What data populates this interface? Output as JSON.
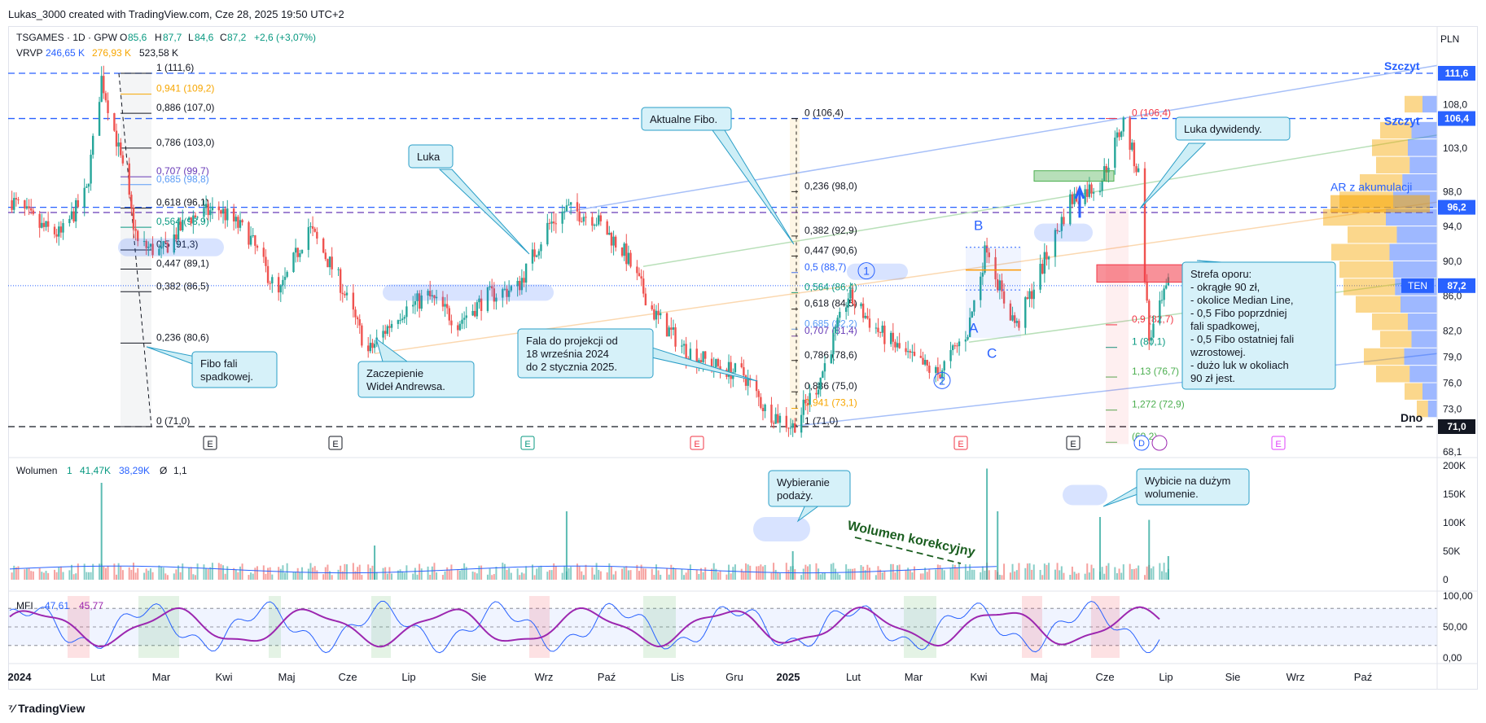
{
  "header": {
    "text": "Lukas_3000 created with TradingView.com, Cze 28, 2025 19:50 UTC+2"
  },
  "legend": {
    "symbol": "TSGAMES · 1D · GPW",
    "o_label": "O",
    "o": "85,6",
    "h_label": "H",
    "h": "87,7",
    "l_label": "L",
    "l": "84,6",
    "c_label": "C",
    "c": "87,2",
    "change": "+2,6 (+3,07%)",
    "vrvp_label": "VRVP",
    "vrvp_1": "246,65 K",
    "vrvp_2": "276,93 K",
    "vrvp_3": "523,58 K"
  },
  "currency": "PLN",
  "price_axis": [
    "108,0",
    "103,0",
    "98,0",
    "94,0",
    "90,0",
    "86,0",
    "82,0",
    "79,0",
    "76,0",
    "73,0",
    "68,1"
  ],
  "price_badges": [
    {
      "label": "111,6",
      "color": "#2962ff",
      "value": 111.6
    },
    {
      "label": "106,4",
      "color": "#2962ff",
      "value": 106.4
    },
    {
      "label": "96,2",
      "color": "#2962ff",
      "value": 96.2
    },
    {
      "label": "87,2",
      "color": "#2962ff",
      "value": 87.2
    },
    {
      "label": "71,0",
      "color": "#131722",
      "value": 71.0
    }
  ],
  "ten_label": "TEN",
  "level_labels": {
    "szczyt1": "Szczyt",
    "szczyt2": "Szczyt",
    "dno": "Dno",
    "ar": "AR z akumulacji"
  },
  "fibo_left": [
    {
      "t": "1 (111,6)",
      "v": 111.6,
      "c": "#131722"
    },
    {
      "t": "0,941 (109,2)",
      "v": 109.2,
      "c": "#f7a600"
    },
    {
      "t": "0,886 (107,0)",
      "v": 107.0,
      "c": "#131722"
    },
    {
      "t": "0,786 (103,0)",
      "v": 103.0,
      "c": "#131722"
    },
    {
      "t": "0,707 (99,7)",
      "v": 99.7,
      "c": "#673ab7"
    },
    {
      "t": "0,685 (98,8)",
      "v": 98.8,
      "c": "#5b9cf6"
    },
    {
      "t": "0,618 (96,1)",
      "v": 96.1,
      "c": "#131722"
    },
    {
      "t": "0,564 (93,9)",
      "v": 93.9,
      "c": "#089981"
    },
    {
      "t": "0,5 (91,3)",
      "v": 91.3,
      "c": "#131722"
    },
    {
      "t": "0,447 (89,1)",
      "v": 89.1,
      "c": "#131722"
    },
    {
      "t": "0,382 (86,5)",
      "v": 86.5,
      "c": "#131722"
    },
    {
      "t": "0,236 (80,6)",
      "v": 80.6,
      "c": "#131722"
    },
    {
      "t": "0 (71,0)",
      "v": 71.0,
      "c": "#131722"
    }
  ],
  "fibo_mid": [
    {
      "t": "0 (106,4)",
      "v": 106.4,
      "c": "#131722"
    },
    {
      "t": "0,236 (98,0)",
      "v": 98.0,
      "c": "#131722"
    },
    {
      "t": "0,382 (92,9)",
      "v": 92.9,
      "c": "#131722"
    },
    {
      "t": "0,447 (90,6)",
      "v": 90.6,
      "c": "#131722"
    },
    {
      "t": "0,5 (88,7)",
      "v": 88.7,
      "c": "#2962ff"
    },
    {
      "t": "0,564 (86,4)",
      "v": 86.4,
      "c": "#089981"
    },
    {
      "t": "0,618 (84,5)",
      "v": 84.5,
      "c": "#131722"
    },
    {
      "t": "0,685 (82,2)",
      "v": 82.2,
      "c": "#5b9cf6"
    },
    {
      "t": "0,707 (81,4)",
      "v": 81.4,
      "c": "#673ab7"
    },
    {
      "t": "0,786 (78,6)",
      "v": 78.6,
      "c": "#131722"
    },
    {
      "t": "0,886 (75,0)",
      "v": 75.0,
      "c": "#131722"
    },
    {
      "t": "0,941 (73,1)",
      "v": 73.1,
      "c": "#f7a600"
    },
    {
      "t": "1 (71,0)",
      "v": 71.0,
      "c": "#131722"
    }
  ],
  "fibo_right": [
    {
      "t": "0 (106,4)",
      "v": 106.4,
      "c": "#f23645"
    },
    {
      "t": "0,9 (82,7)",
      "v": 82.7,
      "c": "#f23645"
    },
    {
      "t": "1 (80,1)",
      "v": 80.1,
      "c": "#089981"
    },
    {
      "t": "1,13 (76,7)",
      "v": 76.7,
      "c": "#4caf50"
    },
    {
      "t": "1,272 (72,9)",
      "v": 72.9,
      "c": "#4caf50"
    },
    {
      "t": "(69,2)",
      "v": 69.2,
      "c": "#4caf50"
    }
  ],
  "annotations": {
    "fibo_fali": [
      "Fibo fali",
      "spadkowej."
    ],
    "luka": [
      "Luka"
    ],
    "zaczepienie": [
      "Zaczepienie",
      "Wideł Andrewsa."
    ],
    "fala": [
      "Fala do projekcji od",
      "18 września 2024",
      "do 2 stycznia 2025."
    ],
    "aktualne": [
      "Aktualne Fibo."
    ],
    "luka_dyw": [
      "Luka dywidendy."
    ],
    "strefa": [
      "Strefa oporu:",
      "- okrągłe 90 zł,",
      "- okolice Median Line,",
      "- 0,5 Fibo poprzdniej",
      "  fali spadkowej,",
      "- 0,5 Fibo ostatniej fali",
      "  wzrostowej.",
      "- dużo luk w okoliach",
      "  90 zł jest."
    ],
    "wybieranie": [
      "Wybieranie",
      "podaży."
    ],
    "wybicie": [
      "Wybicie na dużym",
      "wolumenie."
    ],
    "wolumen_korekcyjny": "Wolumen korekcyjny"
  },
  "wave_labels": {
    "w1": "1",
    "w2": "2",
    "a1": "A",
    "b": "B",
    "c": "C"
  },
  "events": [
    "E",
    "E",
    "E",
    "E",
    "E",
    "E",
    "E",
    "D"
  ],
  "volume": {
    "label": "Wolumen",
    "v1": "1",
    "v2": "41,47K",
    "v3": "38,29K",
    "v4": "Ø",
    "v5": "1,1",
    "axis": [
      "200K",
      "150K",
      "100K",
      "50K",
      "0"
    ]
  },
  "mfi": {
    "label": "MFI",
    "v1": "47,61",
    "v2": "45,77",
    "axis": [
      "100,00",
      "50,00",
      "0,00"
    ]
  },
  "time_axis": [
    "2024",
    "Lut",
    "Mar",
    "Kwi",
    "Maj",
    "Cze",
    "Lip",
    "Sie",
    "Wrz",
    "Paź",
    "Lis",
    "Gru",
    "2025",
    "Lut",
    "Mar",
    "Kwi",
    "Maj",
    "Cze",
    "Lip",
    "Sie",
    "Wrz",
    "Paź"
  ],
  "watermark": "TradingView",
  "chart_data": {
    "type": "candlestick",
    "title": "TSGAMES · 1D · GPW",
    "ylim": [
      68.1,
      113.0
    ],
    "x_start": "2024-01-01",
    "x_end": "2025-10-31",
    "last_bar": "2025-06-27",
    "close_series": [
      {
        "d": "2024-01-02",
        "v": 97.0
      },
      {
        "d": "2024-01-15",
        "v": 94.0
      },
      {
        "d": "2024-01-25",
        "v": 93.0
      },
      {
        "d": "2024-02-06",
        "v": 98.0
      },
      {
        "d": "2024-02-13",
        "v": 111.0
      },
      {
        "d": "2024-02-20",
        "v": 104.0
      },
      {
        "d": "2024-03-01",
        "v": 92.0
      },
      {
        "d": "2024-03-12",
        "v": 91.0
      },
      {
        "d": "2024-03-25",
        "v": 95.0
      },
      {
        "d": "2024-04-08",
        "v": 96.0
      },
      {
        "d": "2024-04-22",
        "v": 93.0
      },
      {
        "d": "2024-05-06",
        "v": 86.0
      },
      {
        "d": "2024-05-20",
        "v": 94.0
      },
      {
        "d": "2024-06-03",
        "v": 88.0
      },
      {
        "d": "2024-06-17",
        "v": 79.5
      },
      {
        "d": "2024-07-01",
        "v": 84.0
      },
      {
        "d": "2024-07-15",
        "v": 86.0
      },
      {
        "d": "2024-07-29",
        "v": 83.0
      },
      {
        "d": "2024-08-12",
        "v": 86.0
      },
      {
        "d": "2024-08-26",
        "v": 87.0
      },
      {
        "d": "2024-09-09",
        "v": 94.0
      },
      {
        "d": "2024-09-18",
        "v": 96.0
      },
      {
        "d": "2024-10-01",
        "v": 95.0
      },
      {
        "d": "2024-10-15",
        "v": 91.0
      },
      {
        "d": "2024-10-29",
        "v": 84.0
      },
      {
        "d": "2024-11-12",
        "v": 80.0
      },
      {
        "d": "2024-11-26",
        "v": 78.0
      },
      {
        "d": "2024-12-10",
        "v": 77.0
      },
      {
        "d": "2024-12-20",
        "v": 73.0
      },
      {
        "d": "2025-01-02",
        "v": 71.0
      },
      {
        "d": "2025-01-14",
        "v": 76.0
      },
      {
        "d": "2025-01-28",
        "v": 86.0
      },
      {
        "d": "2025-02-11",
        "v": 82.0
      },
      {
        "d": "2025-02-25",
        "v": 79.0
      },
      {
        "d": "2025-03-11",
        "v": 77.0
      },
      {
        "d": "2025-03-25",
        "v": 82.0
      },
      {
        "d": "2025-04-03",
        "v": 92.0
      },
      {
        "d": "2025-04-10",
        "v": 86.0
      },
      {
        "d": "2025-04-17",
        "v": 82.5
      },
      {
        "d": "2025-04-30",
        "v": 90.0
      },
      {
        "d": "2025-05-12",
        "v": 97.0
      },
      {
        "d": "2025-05-26",
        "v": 99.0
      },
      {
        "d": "2025-06-06",
        "v": 106.0
      },
      {
        "d": "2025-06-13",
        "v": 100.0
      },
      {
        "d": "2025-06-18",
        "v": 81.0
      },
      {
        "d": "2025-06-27",
        "v": 87.2
      }
    ],
    "volume_series_k": [
      {
        "d": "2024-02-13",
        "v": 170
      },
      {
        "d": "2024-06-20",
        "v": 60
      },
      {
        "d": "2024-09-18",
        "v": 120
      },
      {
        "d": "2025-01-02",
        "v": 50
      },
      {
        "d": "2025-04-03",
        "v": 195
      },
      {
        "d": "2025-04-08",
        "v": 120
      },
      {
        "d": "2025-05-26",
        "v": 110
      },
      {
        "d": "2025-06-18",
        "v": 105
      },
      {
        "d": "2025-06-27",
        "v": 41.47
      }
    ],
    "volume_ylim": [
      0,
      200
    ],
    "mfi_ylim": [
      0,
      100
    ]
  }
}
